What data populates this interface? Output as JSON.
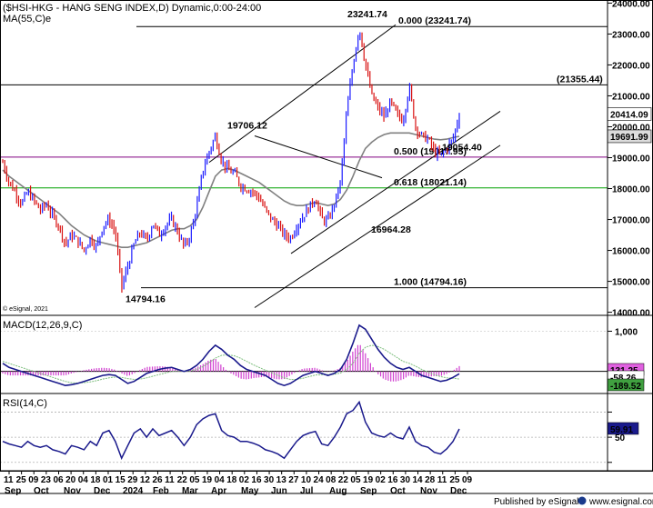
{
  "header": {
    "title": "($HSI-HKG - HANG SENG INDEX,D) Dynamic,0:00-24:00",
    "ma_label": "MA(55,C)e",
    "watermark": "© eSignal, 2021"
  },
  "footer": {
    "published": "Published by eSignal",
    "site": "www.esignal.com"
  },
  "colors": {
    "price_up": "#1a1aff",
    "price_down": "#d81010",
    "ma": "#808080",
    "macd": "#1a1a8c",
    "signal": "#7fbf7f",
    "histogram": "#d040d0",
    "rsi": "#1a1a8c",
    "fib_500": "#800080",
    "fib_618": "#00a000"
  },
  "chart_data": [
    {
      "type": "line",
      "name": "price",
      "y_ticks": [
        14000,
        15000,
        16000,
        17000,
        18000,
        19000,
        20000,
        21000,
        22000,
        23000,
        24000
      ],
      "ylim": [
        13900,
        24100
      ],
      "x_labels": [
        "11",
        "25",
        "09",
        "23",
        "06",
        "20",
        "04",
        "18",
        "01",
        "15",
        "29",
        "12",
        "26",
        "11",
        "22",
        "05",
        "19",
        "04",
        "18",
        "02",
        "16",
        "30",
        "13",
        "27",
        "10",
        "24",
        "08",
        "22",
        "05",
        "19",
        "02",
        "16",
        "30",
        "14",
        "28",
        "11",
        "25",
        "09"
      ],
      "month_labels": [
        "Sep",
        "Oct",
        "Nov",
        "Dec",
        "2024",
        "Feb",
        "Mar",
        "Apr",
        "May",
        "Jun",
        "Jul",
        "Aug",
        "Sep",
        "Oct",
        "Nov",
        "Dec"
      ],
      "annotations": [
        {
          "text": "23241.74",
          "value": 23241.74
        },
        {
          "text": "19706.12",
          "value": 19706.12
        },
        {
          "text": "14794.16",
          "value": 14794.16
        },
        {
          "text": "16964.28",
          "value": 16964.28
        },
        {
          "text": "19054.40",
          "value": 19054.4
        }
      ],
      "levels": [
        {
          "label": "0.000 (23241.74)",
          "value": 23241.74
        },
        {
          "label": "(21355.44)",
          "value": 21355.44
        },
        {
          "label": "0.500 (19017.95)",
          "value": 19017.95
        },
        {
          "label": "0.618 (18021.14)",
          "value": 18021.14
        },
        {
          "label": "1.000 (14794.16)",
          "value": 14794.16
        }
      ],
      "price_tags": [
        {
          "label": "20414.09",
          "value": 20414.09
        },
        {
          "label": "19691.99",
          "value": 19691.99
        }
      ],
      "path": [
        18850,
        18200,
        17900,
        17500,
        17900,
        17600,
        17300,
        17500,
        17100,
        16800,
        16200,
        16500,
        16300,
        16000,
        16400,
        16100,
        16800,
        17000,
        16600,
        14794.16,
        15500,
        16200,
        16600,
        16300,
        16900,
        16500,
        16800,
        17000,
        16600,
        16100,
        16500,
        17400,
        18600,
        19200,
        19706.12,
        18900,
        18600,
        18500,
        18100,
        18000,
        17900,
        17700,
        17300,
        17000,
        16800,
        16500,
        16400,
        16800,
        17100,
        17400,
        17700,
        17000,
        16964.28,
        17500,
        18200,
        20500,
        22000,
        23241.74,
        22000,
        21000,
        20600,
        20300,
        20800,
        20400,
        20200,
        21300,
        20000,
        19700,
        19600,
        19200,
        19054.4,
        19300,
        19600,
        20414.09
      ],
      "ma": [
        18600,
        18400,
        18250,
        18100,
        17950,
        17800,
        17650,
        17500,
        17350,
        17200,
        17000,
        16800,
        16650,
        16500,
        16400,
        16300,
        16250,
        16200,
        16150,
        16100,
        16100,
        16150,
        16200,
        16250,
        16350,
        16450,
        16550,
        16650,
        16700,
        16700,
        16800,
        17000,
        17400,
        17900,
        18400,
        18600,
        18650,
        18600,
        18500,
        18400,
        18300,
        18200,
        18050,
        17900,
        17750,
        17600,
        17500,
        17450,
        17450,
        17500,
        17550,
        17500,
        17450,
        17500,
        17650,
        17950,
        18400,
        18900,
        19300,
        19500,
        19650,
        19750,
        19800,
        19800,
        19800,
        19800,
        19750,
        19700,
        19650,
        19600,
        19580,
        19600,
        19650,
        19691.99
      ]
    },
    {
      "type": "line",
      "name": "MACD(12,26,9,C)",
      "label": "MACD(12,26,9,C)",
      "y_ticks": [
        0,
        1000
      ],
      "y_tick_labels": [
        "0",
        "1,000"
      ],
      "ylim": [
        -550,
        1350
      ],
      "tags": [
        {
          "label": "131.25",
          "value": 131.25
        },
        {
          "label": "-58.26",
          "value": -58.26
        },
        {
          "label": "-189.52",
          "value": -189.52
        }
      ],
      "macd": [
        200,
        100,
        50,
        0,
        -50,
        -100,
        -150,
        -200,
        -250,
        -300,
        -350,
        -330,
        -300,
        -250,
        -200,
        -150,
        -100,
        -80,
        -100,
        -200,
        -300,
        -250,
        -150,
        -50,
        0,
        50,
        80,
        100,
        50,
        0,
        50,
        150,
        300,
        500,
        650,
        550,
        400,
        300,
        150,
        50,
        0,
        -50,
        -100,
        -200,
        -300,
        -350,
        -300,
        -200,
        -100,
        -50,
        0,
        -50,
        -100,
        -50,
        50,
        300,
        700,
        1150,
        1050,
        800,
        550,
        350,
        200,
        100,
        50,
        100,
        0,
        -100,
        -150,
        -200,
        -250,
        -220,
        -150,
        -58.26
      ],
      "signal": [
        250,
        200,
        150,
        100,
        50,
        0,
        -50,
        -100,
        -150,
        -200,
        -250,
        -280,
        -290,
        -280,
        -260,
        -230,
        -190,
        -160,
        -140,
        -150,
        -180,
        -200,
        -190,
        -160,
        -120,
        -80,
        -40,
        0,
        10,
        0,
        10,
        50,
        120,
        220,
        330,
        400,
        410,
        390,
        330,
        250,
        170,
        100,
        30,
        -30,
        -100,
        -160,
        -200,
        -200,
        -170,
        -130,
        -90,
        -80,
        -80,
        -70,
        -40,
        50,
        200,
        450,
        600,
        650,
        620,
        550,
        450,
        350,
        250,
        200,
        130,
        50,
        -20,
        -80,
        -130,
        -160,
        -170,
        -189.52
      ],
      "histogram_note": "macd minus signal"
    },
    {
      "type": "line",
      "name": "RSI(14,C)",
      "label": "RSI(14,C)",
      "y_ticks": [
        20,
        50,
        80
      ],
      "y_tick_labels": [
        "",
        "50",
        ""
      ],
      "ylim": [
        10,
        100
      ],
      "tag": {
        "label": "59.91",
        "value": 59.91
      },
      "values": [
        45,
        42,
        40,
        38,
        45,
        40,
        38,
        40,
        35,
        33,
        30,
        40,
        38,
        35,
        45,
        40,
        55,
        58,
        45,
        25,
        40,
        55,
        60,
        50,
        60,
        52,
        55,
        58,
        50,
        40,
        50,
        65,
        72,
        76,
        78,
        58,
        52,
        50,
        45,
        45,
        43,
        40,
        35,
        33,
        30,
        25,
        35,
        45,
        52,
        55,
        57,
        42,
        40,
        50,
        62,
        78,
        82,
        92,
        68,
        55,
        52,
        50,
        55,
        50,
        48,
        62,
        45,
        40,
        38,
        32,
        30,
        36,
        45,
        59.91
      ]
    }
  ]
}
